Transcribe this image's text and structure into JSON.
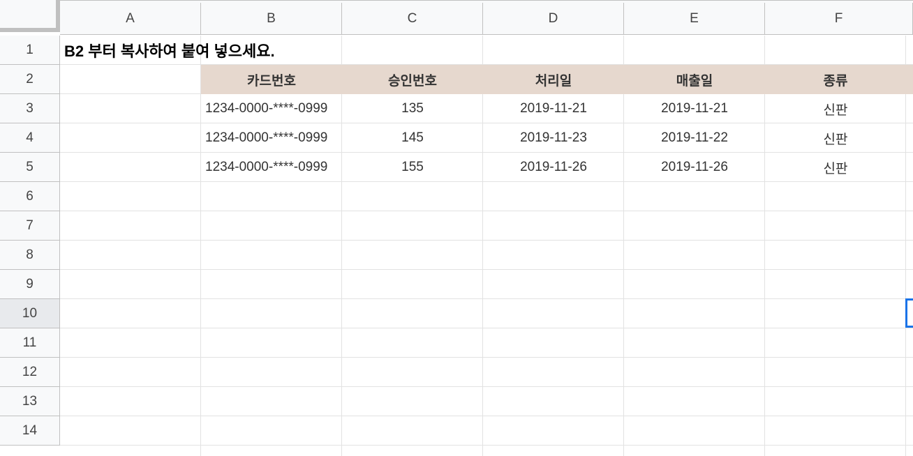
{
  "columns": [
    "A",
    "B",
    "C",
    "D",
    "E",
    "F"
  ],
  "rows": [
    "1",
    "2",
    "3",
    "4",
    "5",
    "6",
    "7",
    "8",
    "9",
    "10",
    "11",
    "12",
    "13",
    "14"
  ],
  "selected_row": "10",
  "title_cell": "B2 부터 복사하여 붙여 넣으세요.",
  "table": {
    "headers": [
      "카드번호",
      "승인번호",
      "처리일",
      "매출일",
      "종류"
    ],
    "rows": [
      [
        "1234-0000-****-0999",
        "135",
        "2019-11-21",
        "2019-11-21",
        "신판"
      ],
      [
        "1234-0000-****-0999",
        "145",
        "2019-11-23",
        "2019-11-22",
        "신판"
      ],
      [
        "1234-0000-****-0999",
        "155",
        "2019-11-26",
        "2019-11-26",
        "신판"
      ]
    ],
    "header_bg": "#e6d8ce"
  },
  "selection_color": "#1a73e8"
}
